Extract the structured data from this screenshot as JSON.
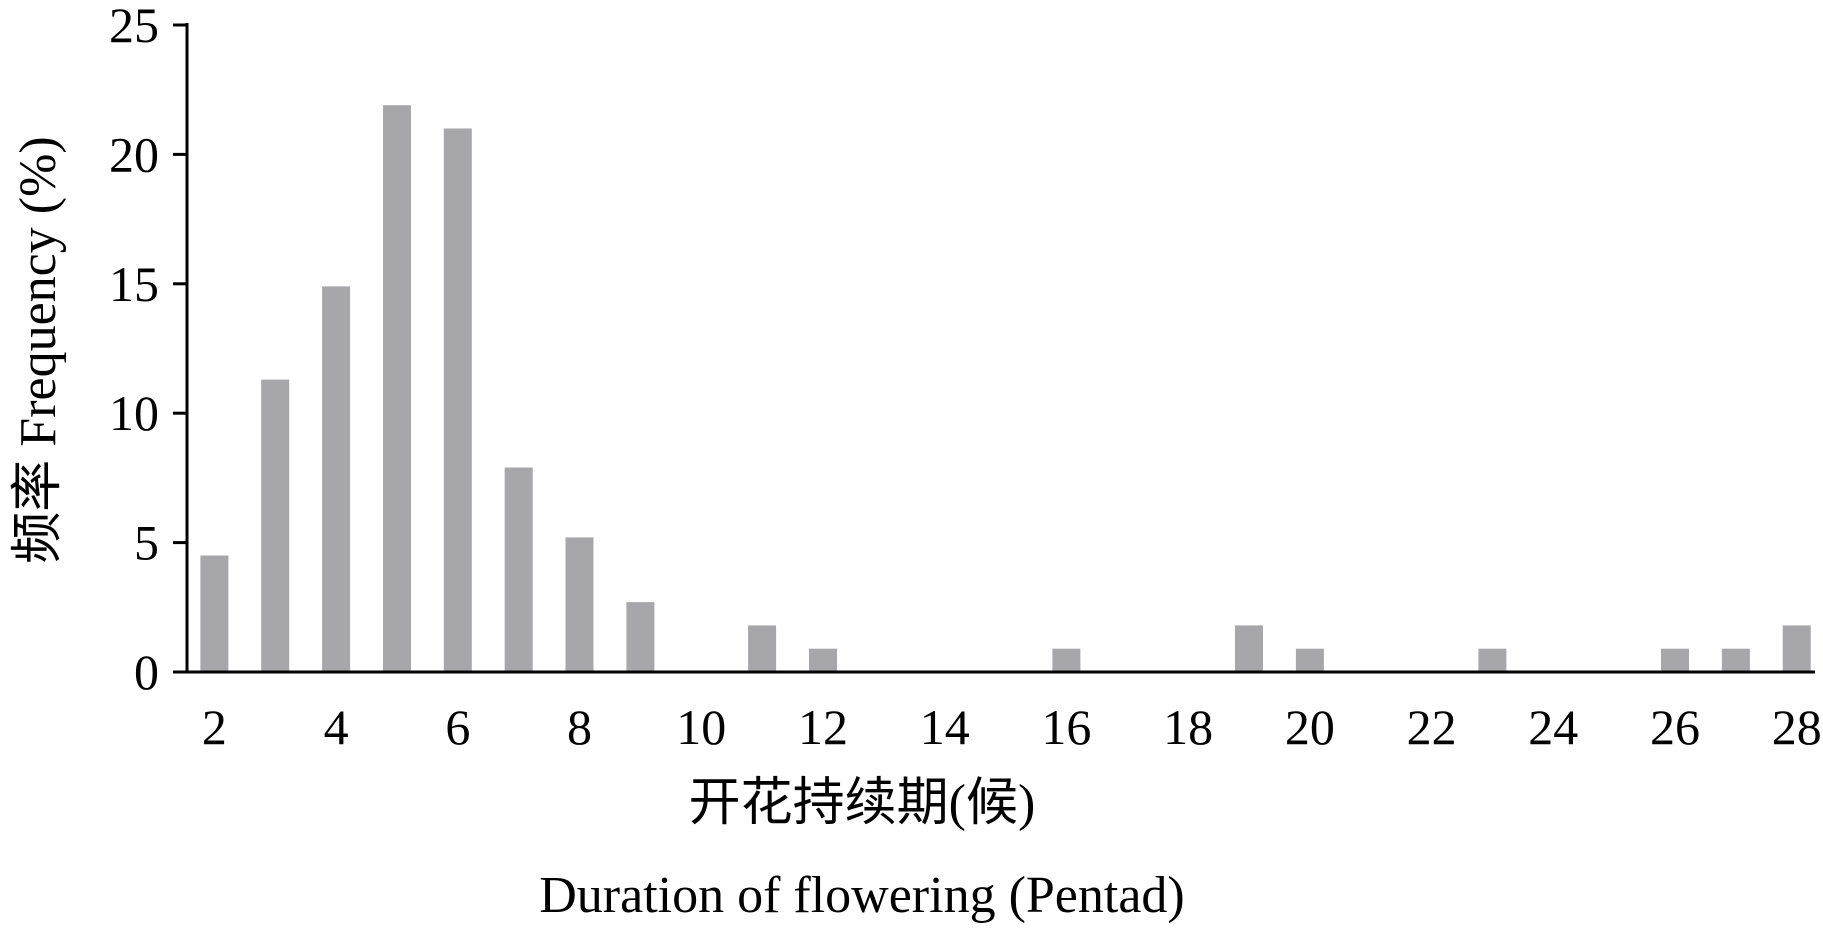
{
  "chart_data": {
    "type": "bar",
    "x": [
      2,
      3,
      4,
      5,
      6,
      7,
      8,
      9,
      10,
      11,
      12,
      13,
      14,
      15,
      16,
      17,
      18,
      19,
      20,
      21,
      22,
      23,
      24,
      25,
      26,
      27,
      28
    ],
    "values": [
      4.5,
      11.3,
      14.9,
      21.9,
      21.0,
      7.9,
      5.2,
      2.7,
      0,
      1.8,
      0.9,
      0,
      0,
      0,
      0.9,
      0,
      0,
      1.8,
      0.9,
      0,
      0,
      0.9,
      0,
      0,
      0.9,
      0.9,
      1.8
    ],
    "xticks": [
      "2",
      "4",
      "6",
      "8",
      "10",
      "12",
      "14",
      "16",
      "18",
      "20",
      "22",
      "24",
      "26",
      "28"
    ],
    "yticks": [
      "0",
      "5",
      "10",
      "15",
      "20",
      "25"
    ],
    "ylim": [
      0,
      25
    ],
    "xlim": [
      1.55,
      28.3
    ],
    "xlabel_cn": "开花持续期(候)",
    "xlabel_en": "Duration of flowering (Pentad)",
    "ylabel": "频率 Frequency (%)",
    "bar_color": "#a7a6ab",
    "axis_color": "#000000",
    "grid": false,
    "legend": "none"
  }
}
